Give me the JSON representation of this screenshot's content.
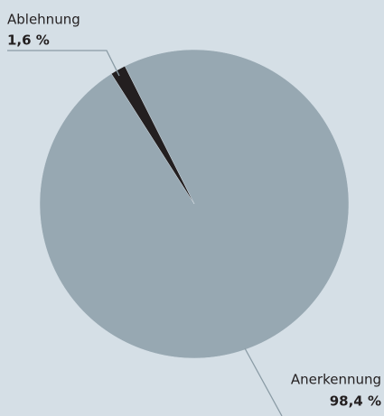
{
  "chart_data": {
    "type": "pie",
    "categories": [
      "Ablehnung",
      "Anerkennung"
    ],
    "values": [
      1.6,
      98.4
    ],
    "value_labels": [
      "1,6 %",
      "98,4 %"
    ],
    "colors": [
      "#231f20",
      "#97a8b2"
    ]
  }
}
